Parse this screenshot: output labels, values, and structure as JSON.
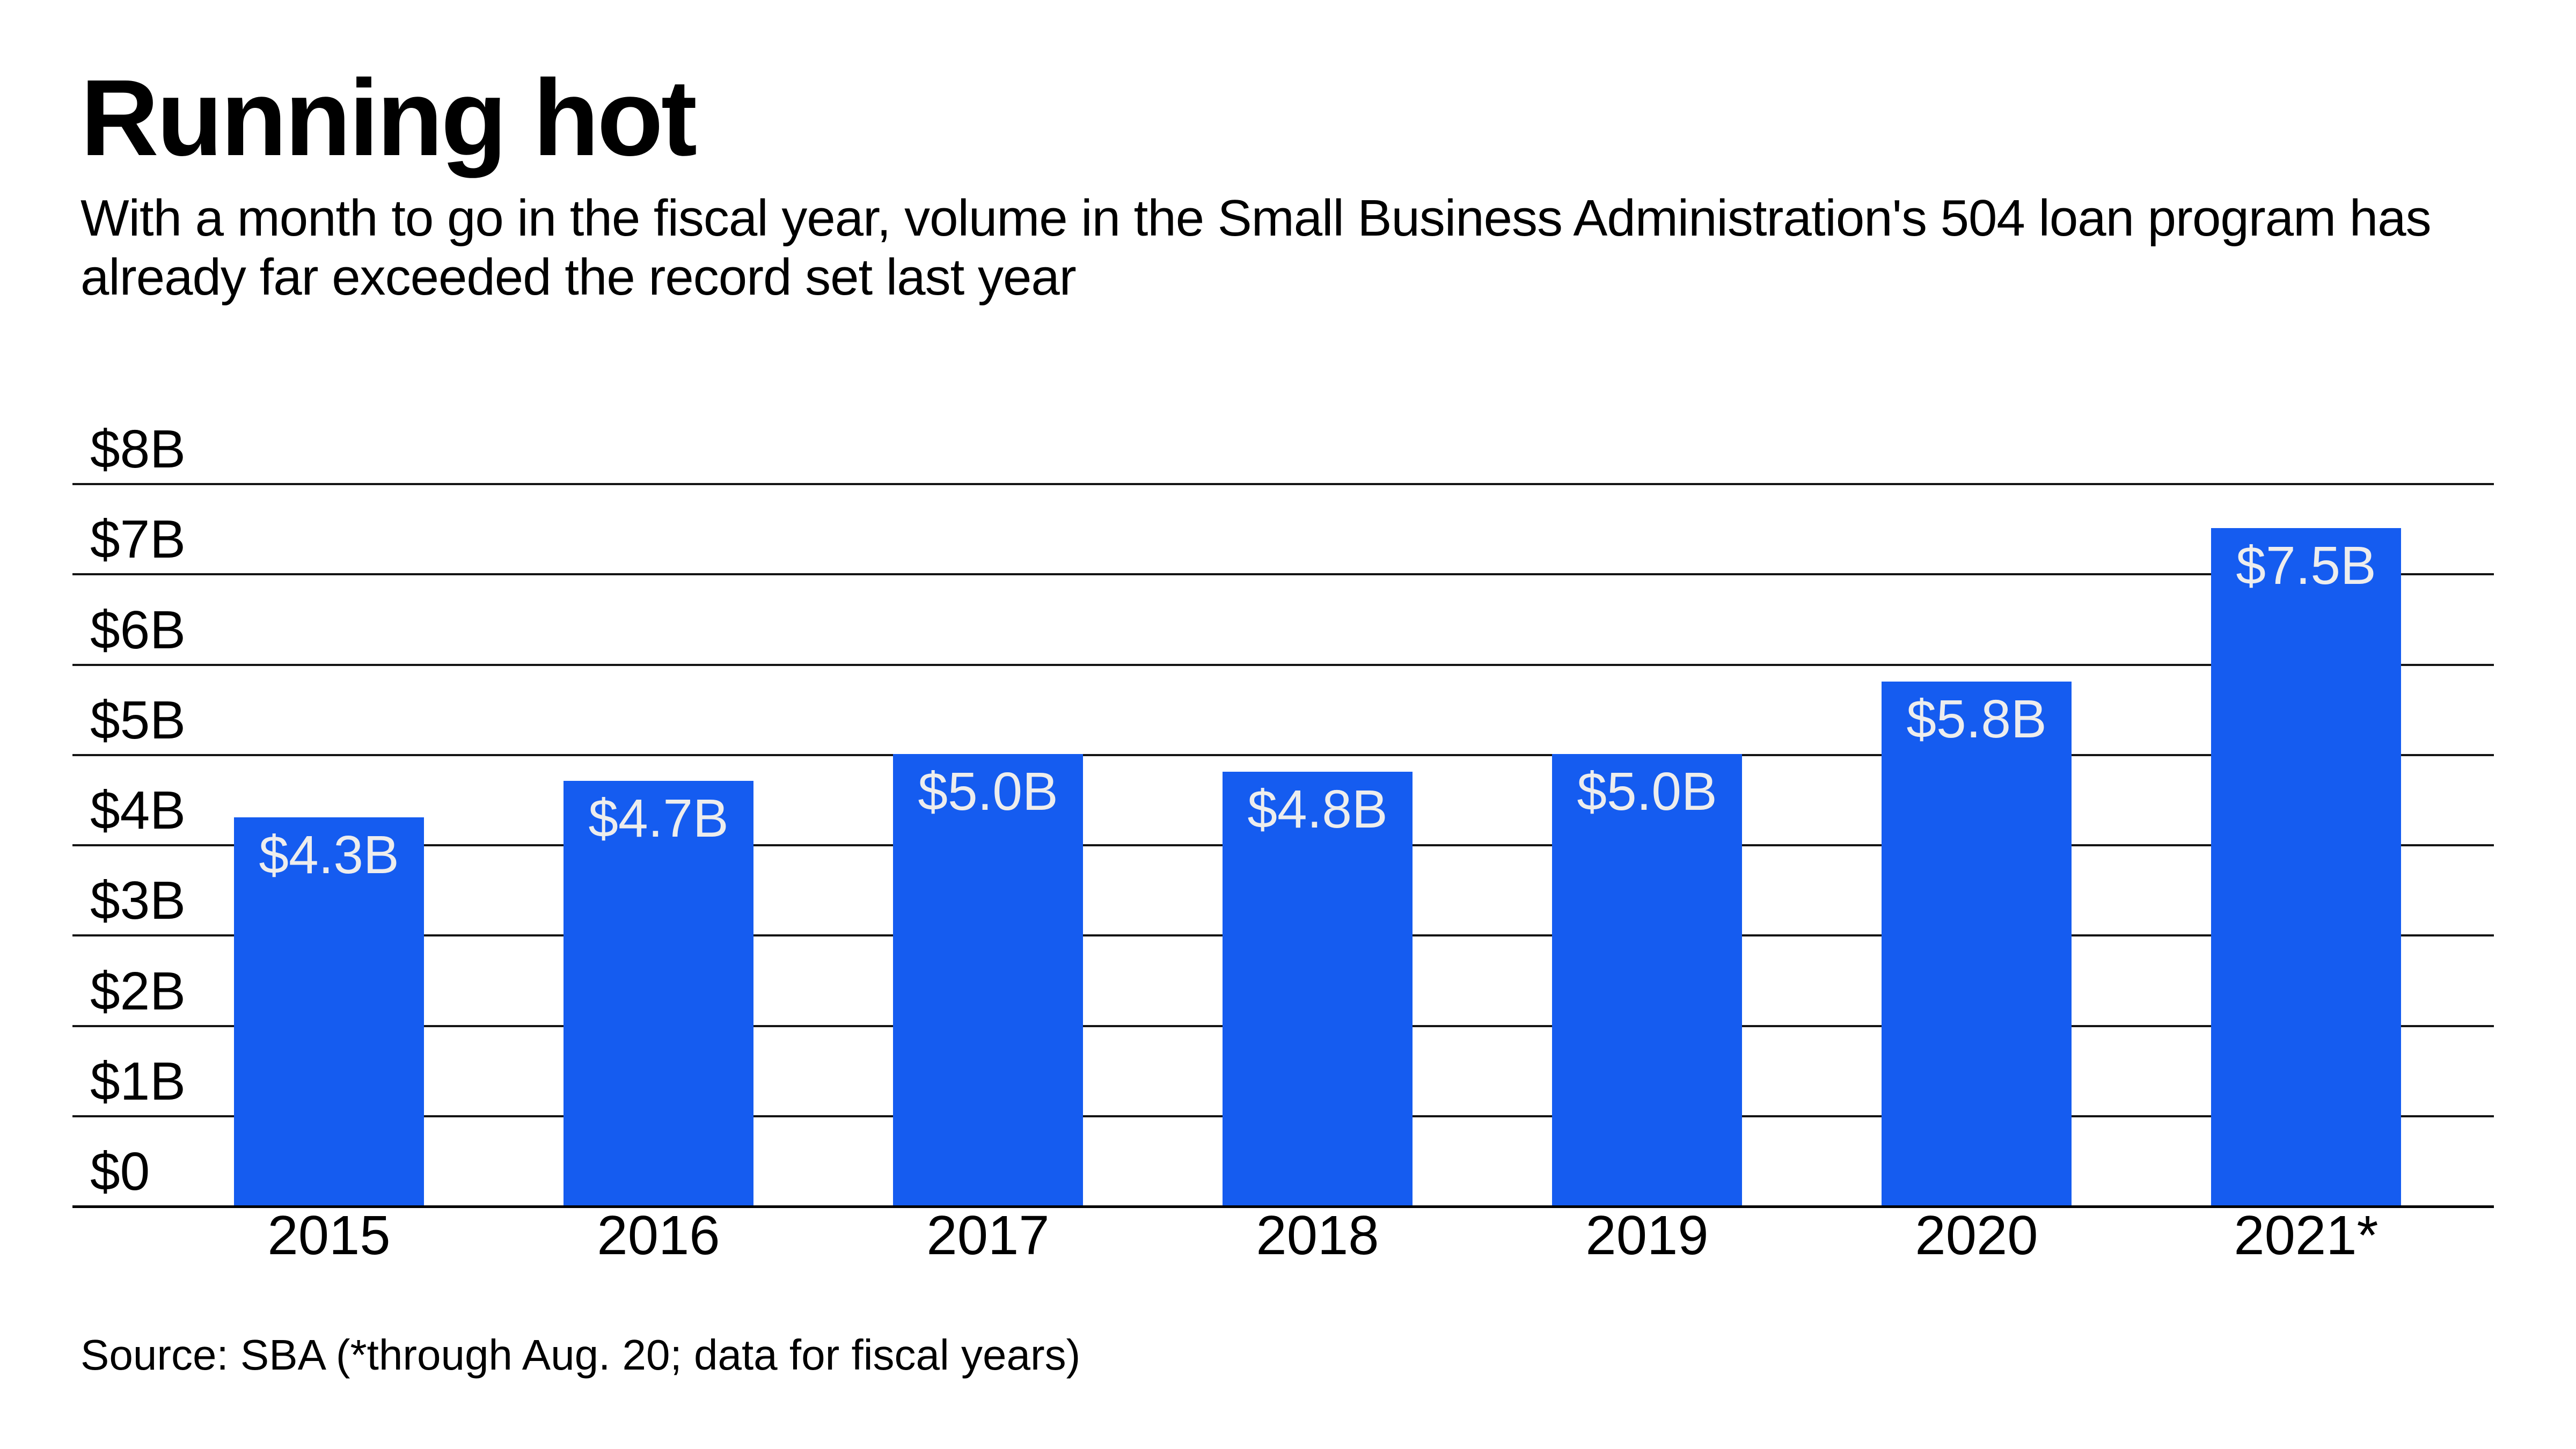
{
  "header": {
    "title": "Running hot",
    "subtitle": "With a month to go in the fiscal year, volume in the Small Business Administration's 504 loan program has already far exceeded the record set last year"
  },
  "footer": {
    "source": "Source: SBA (*through Aug. 20; data for fiscal years)"
  },
  "colors": {
    "bar": "#155CF0",
    "bar_label": "#EDEDED",
    "gridline": "#141414",
    "baseline": "#000000",
    "text": "#000000",
    "background": "#FFFFFF"
  },
  "chart_data": {
    "type": "bar",
    "title": "Running hot",
    "categories": [
      "2015",
      "2016",
      "2017",
      "2018",
      "2019",
      "2020",
      "2021*"
    ],
    "values": [
      4.3,
      4.7,
      5.0,
      4.8,
      5.0,
      5.8,
      7.5
    ],
    "bar_labels": [
      "$4.3B",
      "$4.7B",
      "$5.0B",
      "$4.8B",
      "$5.0B",
      "$5.8B",
      "$7.5B"
    ],
    "unit": "billions of U.S. dollars",
    "xlabel": "",
    "ylabel": "",
    "ylim": [
      0,
      8
    ],
    "ytick_interval": 1,
    "yticks": [
      {
        "value": 8,
        "label": "$8B"
      },
      {
        "value": 7,
        "label": "$7B"
      },
      {
        "value": 6,
        "label": "$6B"
      },
      {
        "value": 5,
        "label": "$5B"
      },
      {
        "value": 4,
        "label": "$4B"
      },
      {
        "value": 3,
        "label": "$3B"
      },
      {
        "value": 2,
        "label": "$2B"
      },
      {
        "value": 1,
        "label": "$1B"
      },
      {
        "value": 0,
        "label": "$0"
      }
    ],
    "grid": "horizontal-only",
    "legend": "none",
    "value_labels_position": "inside-top-center"
  }
}
